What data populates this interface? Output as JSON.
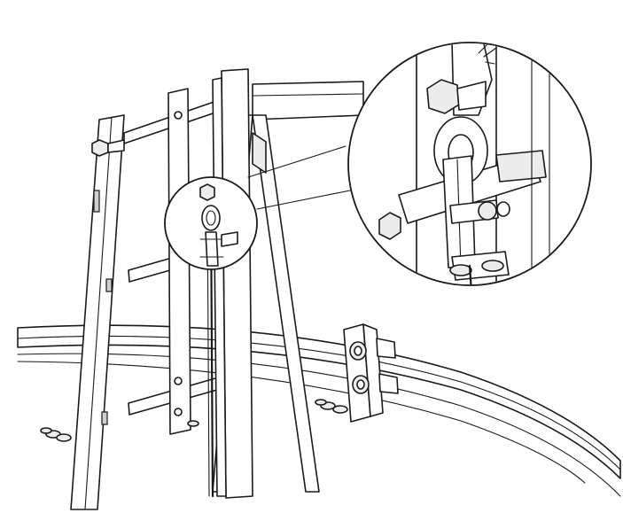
{
  "figure": {
    "subject": "ladder-with-rope-grab-shackle-detail",
    "ink_color": "#1a1a1a",
    "paper_color": "#ffffff",
    "shade_color": "#cfcfcf"
  }
}
